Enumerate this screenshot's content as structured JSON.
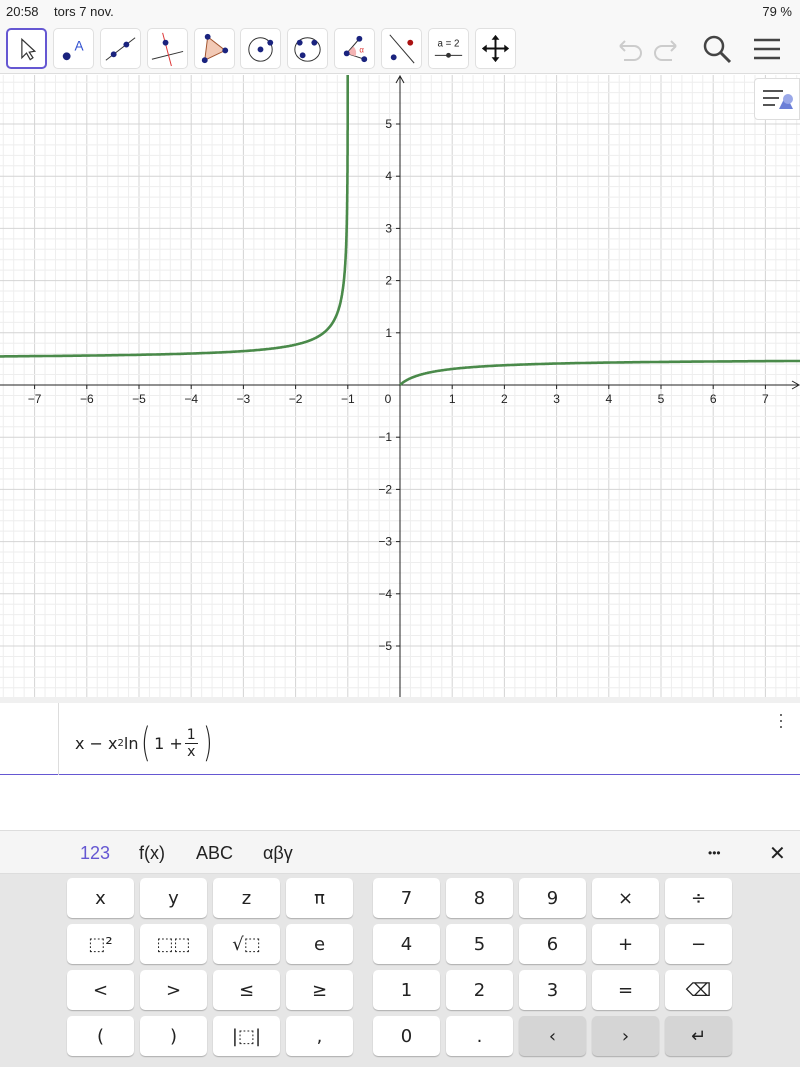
{
  "status": {
    "time": "20:58",
    "date": "tors 7 nov.",
    "battery": "79 %"
  },
  "toolbar": {
    "tools": [
      "move-tool",
      "point-tool",
      "line-tool",
      "perpendicular-line-tool",
      "polygon-tool",
      "circle-center-point-tool",
      "circle-3-points-tool",
      "angle-tool",
      "reflect-tool",
      "slider-tool",
      "move-graphics-view-tool"
    ],
    "selected": "move-tool",
    "slider_label": "a = 2",
    "selected_color": "#6557d2"
  },
  "graph": {
    "function": "x - x^2 ln(1 + 1/x)",
    "curve_color": "#4a8a4a",
    "xlim": [
      -7.7,
      7.7
    ],
    "ylim": [
      -5.9,
      6
    ],
    "x_ticks": [
      "−7",
      "−6",
      "−5",
      "−4",
      "−3",
      "−2",
      "−1",
      "0",
      "1",
      "2",
      "3",
      "4",
      "5",
      "6",
      "7"
    ],
    "y_ticks": [
      "5",
      "4",
      "3",
      "2",
      "1",
      "−1",
      "−2",
      "−3",
      "−4",
      "−5"
    ]
  },
  "algebra": {
    "x1": "x − x",
    "exp": "2",
    "ln": "ln",
    "one": "1 +",
    "num": "1",
    "den": "x"
  },
  "keyboard": {
    "tabs": [
      "123",
      "f(x)",
      "ABC",
      "αβγ"
    ],
    "more": "•••",
    "close": "✕",
    "left": [
      [
        "x",
        "y",
        "z",
        "π"
      ],
      [
        "⬚²",
        "⬚⬚",
        "√⬚",
        "e"
      ],
      [
        "<",
        ">",
        "≤",
        "≥"
      ],
      [
        "(",
        ")",
        "|⬚|",
        ","
      ]
    ],
    "right": [
      [
        "7",
        "8",
        "9",
        "×",
        "÷"
      ],
      [
        "4",
        "5",
        "6",
        "+",
        "−"
      ],
      [
        "1",
        "2",
        "3",
        "=",
        "⌫"
      ],
      [
        "0",
        ".",
        "‹",
        "›",
        "↵"
      ]
    ]
  }
}
